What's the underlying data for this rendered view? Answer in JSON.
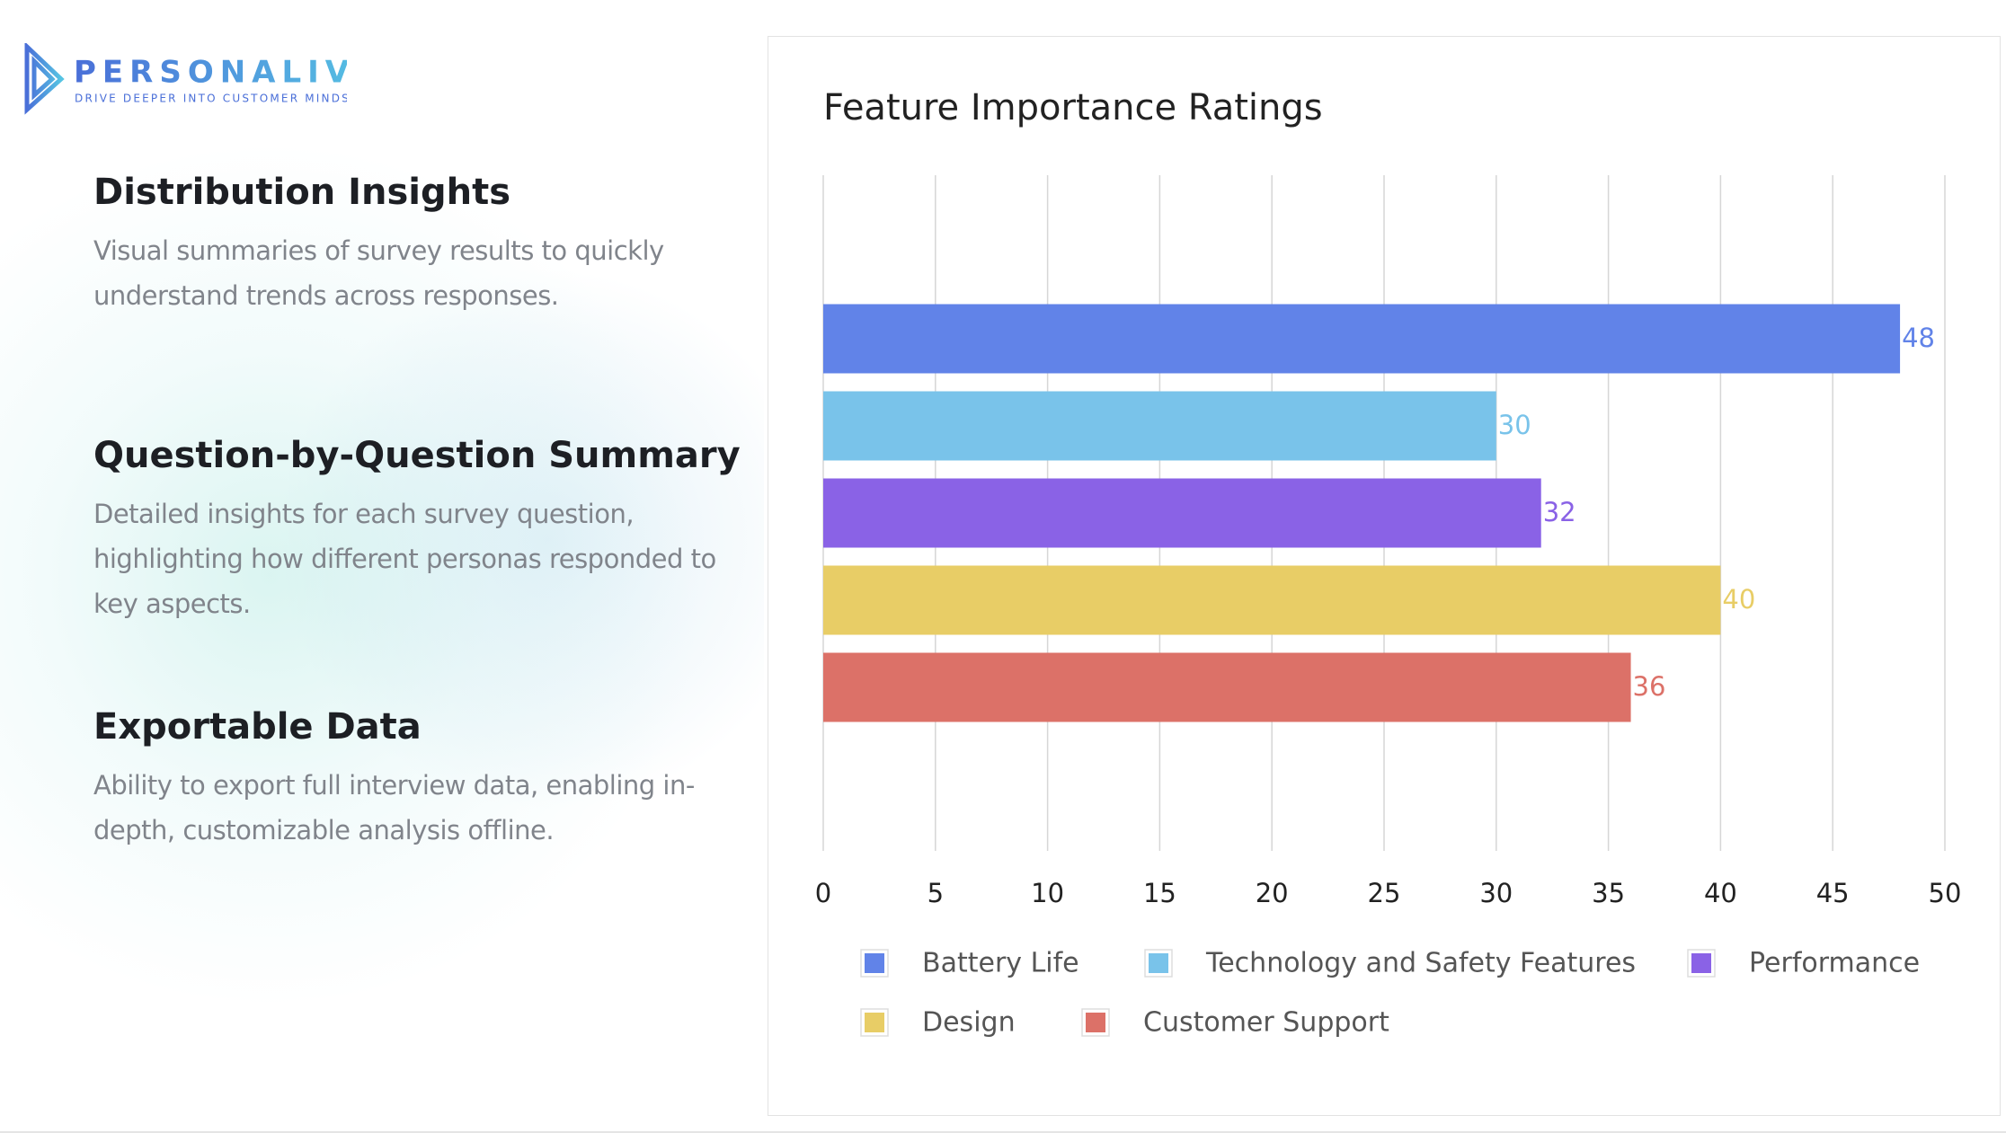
{
  "logo": {
    "name": "PERSONALIVE",
    "tagline": "DRIVE DEEPER INTO CUSTOMER MINDS"
  },
  "sections": [
    {
      "title": "Distribution Insights",
      "text": "Visual summaries of survey results to quickly understand trends across responses."
    },
    {
      "title": "Question-by-Question Summary",
      "text": "Detailed insights for each survey question, highlighting how different personas responded to key aspects."
    },
    {
      "title": "Exportable Data",
      "text": "Ability to export full interview data, enabling in-depth, customizable analysis offline."
    }
  ],
  "chart_data": {
    "type": "bar",
    "orientation": "horizontal",
    "title": "Feature Importance Ratings",
    "categories": [
      null
    ],
    "series": [
      {
        "name": "Battery Life",
        "color": "#6183e8",
        "values": [
          48
        ]
      },
      {
        "name": "Technology and Safety Features",
        "color": "#79c3ea",
        "values": [
          30
        ]
      },
      {
        "name": "Performance",
        "color": "#8a62e6",
        "values": [
          32
        ]
      },
      {
        "name": "Design",
        "color": "#e8cd66",
        "values": [
          40
        ]
      },
      {
        "name": "Customer Support",
        "color": "#dc7168",
        "values": [
          36
        ]
      }
    ],
    "xlim": [
      0,
      50
    ],
    "xticks": [
      0,
      5,
      10,
      15,
      20,
      25,
      30,
      35,
      40,
      45,
      50
    ],
    "grid": true
  }
}
